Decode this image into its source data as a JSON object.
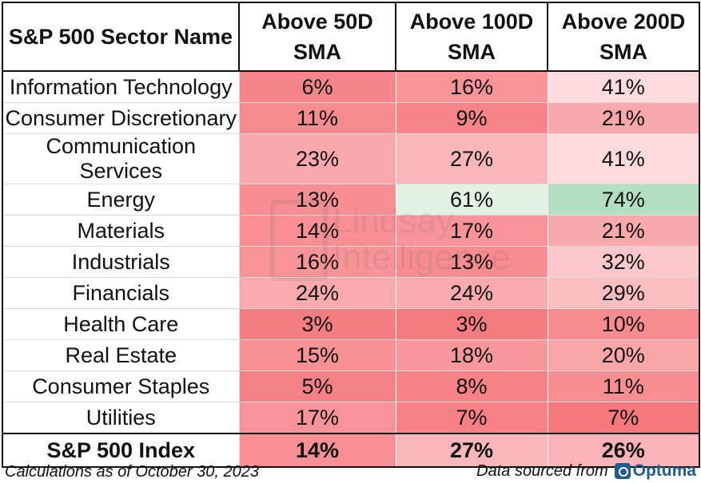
{
  "headers": [
    "S&P 500 Sector Name",
    "Above 50D SMA",
    "Above 100D SMA",
    "Above 200D SMA"
  ],
  "header_lines": [
    [
      "S&P 500 Sector Name"
    ],
    [
      "Above 50D",
      "SMA"
    ],
    [
      "Above 100D",
      "SMA"
    ],
    [
      "Above 200D",
      "SMA"
    ]
  ],
  "rows": [
    {
      "name": "Information Technology",
      "v50": "6%",
      "v100": "16%",
      "v200": "41%",
      "colors": [
        "#f5858a",
        "#f89398",
        "#fcdade"
      ]
    },
    {
      "name": "Consumer Discretionary",
      "v50": "11%",
      "v100": "9%",
      "v200": "21%",
      "colors": [
        "#f68b90",
        "#f68489",
        "#f9a8ab"
      ]
    },
    {
      "name": "Communication Services",
      "v50": "23%",
      "v100": "27%",
      "v200": "41%",
      "colors": [
        "#f9a8ac",
        "#f9b7ba",
        "#fcdade"
      ]
    },
    {
      "name": "Energy",
      "v50": "13%",
      "v100": "61%",
      "v200": "74%",
      "colors": [
        "#f78e93",
        "#e1f1e4",
        "#b4dec0"
      ]
    },
    {
      "name": "Materials",
      "v50": "14%",
      "v100": "17%",
      "v200": "21%",
      "colors": [
        "#f78f94",
        "#f89499",
        "#f9a8ab"
      ]
    },
    {
      "name": "Industrials",
      "v50": "16%",
      "v100": "13%",
      "v200": "32%",
      "colors": [
        "#f89398",
        "#f78c91",
        "#fbc7ca"
      ]
    },
    {
      "name": "Financials",
      "v50": "24%",
      "v100": "24%",
      "v200": "29%",
      "colors": [
        "#faaaae",
        "#f9aaae",
        "#fabdc0"
      ]
    },
    {
      "name": "Health Care",
      "v50": "3%",
      "v100": "3%",
      "v200": "10%",
      "colors": [
        "#f47d82",
        "#f47b80",
        "#f68c90"
      ]
    },
    {
      "name": "Real Estate",
      "v50": "15%",
      "v100": "18%",
      "v200": "20%",
      "colors": [
        "#f89196",
        "#f8989d",
        "#f9a6a9"
      ]
    },
    {
      "name": "Consumer Staples",
      "v50": "5%",
      "v100": "8%",
      "v200": "11%",
      "colors": [
        "#f48186",
        "#f68287",
        "#f68e92"
      ]
    },
    {
      "name": "Utilities",
      "v50": "17%",
      "v100": "7%",
      "v200": "7%",
      "colors": [
        "#f89499",
        "#f68085",
        "#f5787d"
      ]
    }
  ],
  "index_row": {
    "name": "S&P 500 Index",
    "v50": "14%",
    "v100": "27%",
    "v200": "26%",
    "colors": [
      "#f78f94",
      "#fab7ba",
      "#fab3b6"
    ]
  },
  "footer": {
    "left": "Calculations as of October 30, 2023",
    "right": "Data sourced from",
    "logo": "Optuma",
    "logo_icon": "optuma-logo-icon"
  },
  "watermark": [
    "Lindsay",
    "Intelligence"
  ]
}
